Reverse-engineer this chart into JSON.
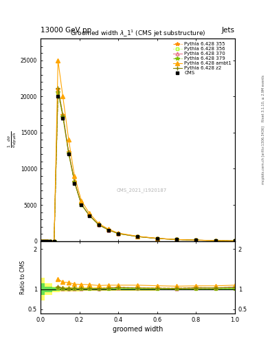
{
  "title": "Groomed width $\\lambda\\_1^1$ (CMS jet substructure)",
  "header_left": "13000 GeV pp",
  "header_right": "Jets",
  "watermark": "CMS_2021_I1920187",
  "right_label_top": "Rivet 3.1.10, ≥ 2.9M events",
  "right_label_bottom": "mcplots.cern.ch [arXiv:1306.3436]",
  "xlabel": "groomed width",
  "x": [
    0.005,
    0.015,
    0.025,
    0.035,
    0.05,
    0.07,
    0.09,
    0.115,
    0.145,
    0.175,
    0.21,
    0.25,
    0.3,
    0.35,
    0.4,
    0.5,
    0.6,
    0.7,
    0.8,
    0.9,
    1.0
  ],
  "cms_y": [
    0,
    0,
    0,
    0,
    0,
    0,
    20000,
    17000,
    12000,
    8000,
    5000,
    3500,
    2200,
    1500,
    1000,
    600,
    350,
    200,
    120,
    60,
    20
  ],
  "p355_y": [
    0,
    0,
    0,
    0,
    0,
    0,
    21000,
    17500,
    12300,
    8200,
    5100,
    3600,
    2250,
    1550,
    1050,
    620,
    360,
    205,
    125,
    62,
    21
  ],
  "p356_y": [
    0,
    0,
    0,
    0,
    0,
    0,
    20500,
    17200,
    12100,
    8100,
    5050,
    3550,
    2220,
    1520,
    1020,
    610,
    355,
    202,
    122,
    61,
    20.5
  ],
  "p370_y": [
    0,
    0,
    0,
    0,
    0,
    0,
    20800,
    17300,
    12200,
    8150,
    5080,
    3570,
    2230,
    1530,
    1030,
    615,
    357,
    203,
    123,
    61.5,
    20.8
  ],
  "p379_y": [
    0,
    0,
    0,
    0,
    0,
    0,
    20600,
    17200,
    12100,
    8100,
    5060,
    3560,
    2225,
    1525,
    1025,
    612,
    355,
    201,
    121,
    60.5,
    20.3
  ],
  "pambt_y": [
    0,
    0,
    0,
    0,
    0,
    0,
    25000,
    20000,
    14000,
    9000,
    5600,
    3900,
    2400,
    1650,
    1100,
    660,
    380,
    215,
    130,
    65,
    22
  ],
  "pz2_y": [
    0,
    0,
    0,
    0,
    0,
    0,
    21200,
    17400,
    12200,
    8200,
    5100,
    3580,
    2240,
    1540,
    1040,
    618,
    358,
    204,
    124,
    62,
    21
  ],
  "colors": {
    "cms": "#000000",
    "p355": "#FF8C00",
    "p356": "#ADFF2F",
    "p370": "#E8748A",
    "p379": "#7FBF00",
    "pambt": "#FFA500",
    "pz2": "#808000"
  },
  "ylim_main": [
    0,
    28000
  ],
  "ylim_ratio": [
    0.4,
    2.2
  ],
  "xlim": [
    0.0,
    1.0
  ],
  "yticks_main": [
    0,
    5000,
    10000,
    15000,
    20000,
    25000
  ],
  "ytick_labels_main": [
    "0",
    "5000",
    "10000",
    "15000",
    "20000",
    "25000"
  ]
}
